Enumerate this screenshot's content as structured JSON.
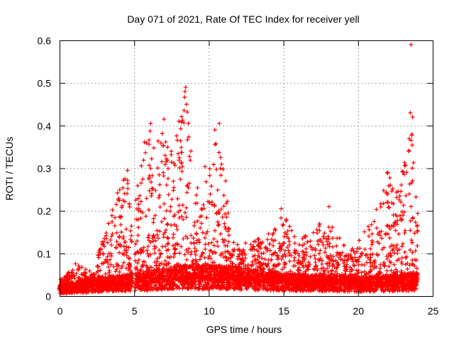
{
  "chart_data": {
    "type": "scatter",
    "title": "Day 071 of 2021, Rate Of TEC Index for receiver yell",
    "xlabel": "GPS time / hours",
    "ylabel": "ROTI / TECUs",
    "xlim": [
      0,
      25
    ],
    "ylim": [
      0,
      0.6
    ],
    "xticks": [
      "0",
      "5",
      "10",
      "15",
      "20",
      "25"
    ],
    "yticks": [
      "0",
      "0.1",
      "0.2",
      "0.3",
      "0.4",
      "0.5",
      "0.6"
    ],
    "grid": true,
    "marker": "+",
    "color": "#ff0000",
    "series": [
      {
        "envelope": [
          [
            0.0,
            0.04
          ],
          [
            0.5,
            0.05
          ],
          [
            1.0,
            0.08
          ],
          [
            1.5,
            0.07
          ],
          [
            2.0,
            0.06
          ],
          [
            2.5,
            0.08
          ],
          [
            3.0,
            0.17
          ],
          [
            3.5,
            0.22
          ],
          [
            4.0,
            0.25
          ],
          [
            4.5,
            0.3
          ],
          [
            4.9,
            0.16
          ],
          [
            5.5,
            0.35
          ],
          [
            6.0,
            0.4
          ],
          [
            6.5,
            0.36
          ],
          [
            7.0,
            0.41
          ],
          [
            7.5,
            0.37
          ],
          [
            8.0,
            0.44
          ],
          [
            8.5,
            0.48
          ],
          [
            9.0,
            0.26
          ],
          [
            9.5,
            0.25
          ],
          [
            10.0,
            0.37
          ],
          [
            10.5,
            0.4
          ],
          [
            11.0,
            0.33
          ],
          [
            11.5,
            0.13
          ],
          [
            12.0,
            0.12
          ],
          [
            13.0,
            0.13
          ],
          [
            14.0,
            0.15
          ],
          [
            15.0,
            0.2
          ],
          [
            16.0,
            0.14
          ],
          [
            17.0,
            0.15
          ],
          [
            18.0,
            0.2
          ],
          [
            19.0,
            0.12
          ],
          [
            20.0,
            0.13
          ],
          [
            21.0,
            0.19
          ],
          [
            22.0,
            0.29
          ],
          [
            22.5,
            0.25
          ],
          [
            23.0,
            0.3
          ],
          [
            23.5,
            0.43
          ],
          [
            24.0,
            0.2
          ]
        ],
        "outliers": [
          [
            23.55,
            0.59
          ],
          [
            23.5,
            0.43
          ],
          [
            23.65,
            0.42
          ],
          [
            23.6,
            0.38
          ],
          [
            8.45,
            0.49
          ],
          [
            8.4,
            0.48
          ],
          [
            8.5,
            0.45
          ],
          [
            6.1,
            0.405
          ],
          [
            7.0,
            0.415
          ],
          [
            10.7,
            0.405
          ],
          [
            10.4,
            0.39
          ],
          [
            14.85,
            0.205
          ],
          [
            18.05,
            0.21
          ],
          [
            21.95,
            0.29
          ],
          [
            4.55,
            0.295
          ]
        ],
        "quiet_level": [
          [
            0.0,
            0.015
          ],
          [
            3.0,
            0.025
          ],
          [
            5.0,
            0.03
          ],
          [
            8.0,
            0.04
          ],
          [
            11.0,
            0.04
          ],
          [
            15.0,
            0.03
          ],
          [
            20.0,
            0.025
          ],
          [
            24.0,
            0.03
          ]
        ]
      }
    ]
  }
}
